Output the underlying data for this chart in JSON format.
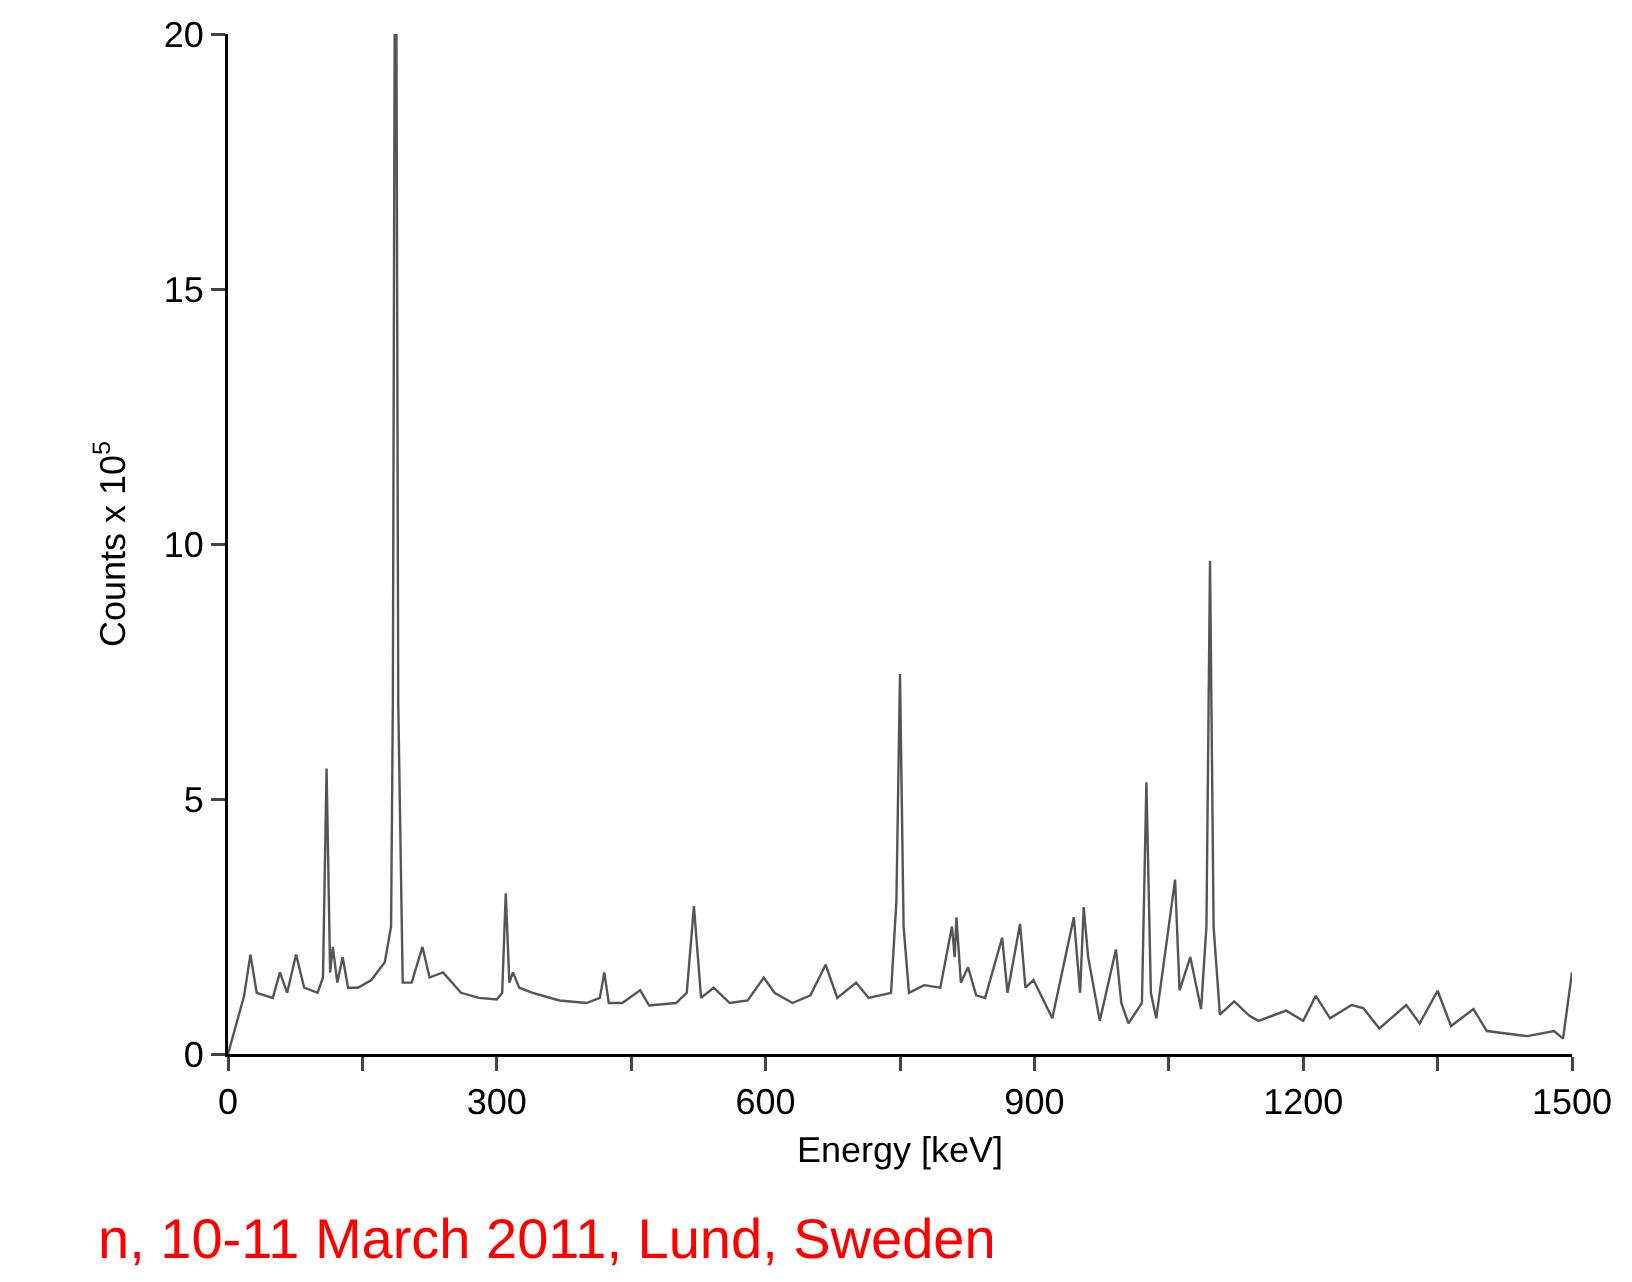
{
  "chart_data": {
    "type": "line",
    "xlabel": "Energy [keV]",
    "ylabel": "Counts x 10$^{5}$",
    "annotations": [
      "n, 10-11 March 2011, Lund, Sweden"
    ],
    "xlim": [
      0,
      1500
    ],
    "xticks": [
      0,
      {
        "value": 150,
        "label": null
      },
      300,
      {
        "value": 450,
        "label": null
      },
      600,
      {
        "value": 750,
        "label": null
      },
      900,
      {
        "value": 1050,
        "label": null
      },
      1200,
      {
        "value": 1350,
        "label": null
      },
      1500
    ],
    "ylim": [
      0,
      20
    ],
    "yticks": [
      0,
      5,
      10,
      15,
      20
    ],
    "marker": "none",
    "line_style": "solid",
    "series": [
      {
        "color": "#555555",
        "x": [
          0,
          18,
          25,
          32,
          50,
          58,
          66,
          76,
          85,
          100,
          106,
          110,
          114,
          117,
          122,
          128,
          134,
          145,
          160,
          175,
          182,
          184,
          186,
          188,
          190,
          195,
          205,
          217,
          225,
          240,
          260,
          280,
          300,
          306,
          310,
          314,
          318,
          325,
          340,
          370,
          400,
          415,
          420,
          425,
          440,
          460,
          470,
          500,
          512,
          520,
          528,
          542,
          560,
          580,
          598,
          610,
          630,
          650,
          667,
          680,
          701,
          715,
          740,
          746,
          750,
          754,
          760,
          777,
          795,
          808,
          811,
          813,
          818,
          826,
          835,
          845,
          864,
          870,
          884,
          890,
          899,
          920,
          944,
          951,
          955,
          960,
          973,
          991,
          997,
          1005,
          1020,
          1025,
          1030,
          1036,
          1057,
          1062,
          1074,
          1086,
          1092,
          1096,
          1100,
          1107,
          1123,
          1140,
          1150,
          1181,
          1200,
          1214,
          1230,
          1254,
          1267,
          1285,
          1315,
          1330,
          1350,
          1365,
          1390,
          1405,
          1450,
          1480,
          1490,
          1500
        ],
        "values": [
          0,
          1.14,
          1.95,
          1.2,
          1.1,
          1.6,
          1.2,
          1.95,
          1.3,
          1.2,
          1.5,
          5.6,
          1.6,
          2.1,
          1.4,
          1.9,
          1.3,
          1.3,
          1.45,
          1.8,
          2.5,
          6.9,
          20,
          20,
          6.9,
          1.4,
          1.4,
          2.1,
          1.5,
          1.6,
          1.2,
          1.1,
          1.07,
          1.2,
          3.15,
          1.4,
          1.6,
          1.3,
          1.2,
          1.05,
          1.0,
          1.1,
          1.6,
          1.0,
          1.0,
          1.25,
          0.95,
          1.0,
          1.2,
          2.9,
          1.1,
          1.3,
          1.0,
          1.05,
          1.5,
          1.2,
          1.0,
          1.15,
          1.75,
          1.1,
          1.4,
          1.1,
          1.2,
          3.0,
          7.45,
          2.5,
          1.2,
          1.35,
          1.3,
          2.5,
          1.9,
          2.68,
          1.4,
          1.7,
          1.15,
          1.1,
          2.28,
          1.2,
          2.55,
          1.3,
          1.45,
          0.7,
          2.68,
          1.2,
          2.88,
          1.9,
          0.65,
          2.05,
          1.0,
          0.6,
          1.0,
          5.33,
          1.2,
          0.7,
          3.42,
          1.25,
          1.9,
          0.88,
          2.5,
          9.67,
          2.5,
          0.77,
          1.03,
          0.75,
          0.65,
          0.85,
          0.65,
          1.14,
          0.7,
          0.96,
          0.9,
          0.5,
          0.96,
          0.6,
          1.24,
          0.55,
          0.88,
          0.45,
          0.35,
          0.45,
          0.3,
          1.6
        ]
      }
    ]
  }
}
